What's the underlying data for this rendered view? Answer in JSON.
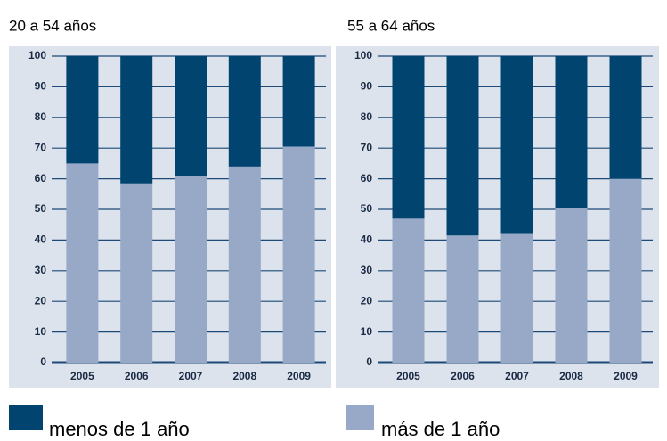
{
  "chart_data": [
    {
      "type": "stacked_bar",
      "title": "20 a 54 años",
      "categories": [
        "2005",
        "2006",
        "2007",
        "2008",
        "2009"
      ],
      "series": [
        {
          "name": "más de 1 año",
          "color": "#97a9c6",
          "values": [
            65,
            58.5,
            61,
            64,
            70.5
          ]
        },
        {
          "name": "menos de 1 año",
          "color": "#00446f",
          "values": [
            35,
            41.5,
            39,
            36,
            29.5
          ]
        }
      ],
      "ylim": [
        0,
        100
      ],
      "yticks": [
        0,
        10,
        20,
        30,
        40,
        50,
        60,
        70,
        80,
        90,
        100
      ],
      "grid": true
    },
    {
      "type": "stacked_bar",
      "title": "55 a 64 años",
      "categories": [
        "2005",
        "2006",
        "2007",
        "2008",
        "2009"
      ],
      "series": [
        {
          "color": "#97a9c6",
          "values": [
            47,
            41.5,
            42,
            50.5,
            60
          ]
        },
        {
          "color": "#00446f",
          "values": [
            53,
            58.5,
            58,
            49.5,
            40
          ]
        }
      ],
      "ylim": [
        0,
        100
      ],
      "yticks": [
        0,
        10,
        20,
        30,
        40,
        50,
        60,
        70,
        80,
        90,
        100
      ],
      "grid": true
    }
  ]
}
